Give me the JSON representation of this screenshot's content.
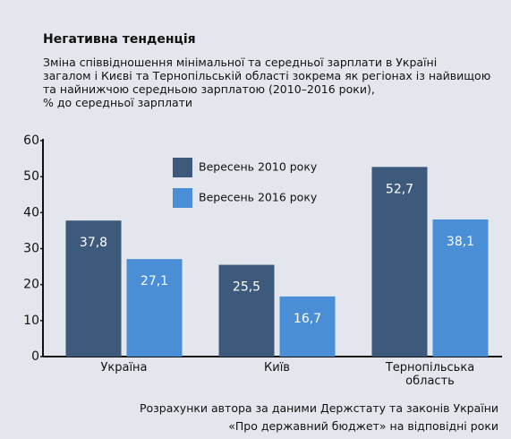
{
  "chart_data": {
    "type": "bar",
    "title": "Негативна тенденція",
    "subtitle": [
      "Зміна співвідношення мінімальної та середньої зарплати в Україні",
      "загалом і Києві та Тернопільській області зокрема як регіонах із найвищою",
      "та найнижчою середньою зарплатою (2010–2016 роки),",
      "% до середньої зарплати"
    ],
    "categories": [
      "Україна",
      "Київ",
      "Тернопільська область"
    ],
    "series": [
      {
        "name": "Вересень 2010 року",
        "color": "#3d5a7c",
        "values": [
          37.8,
          25.5,
          52.7
        ],
        "value_labels": [
          "37,8",
          "25,5",
          "52,7"
        ]
      },
      {
        "name": "Вересень 2016 року",
        "color": "#4a8fd5",
        "values": [
          27.1,
          16.7,
          38.1
        ],
        "value_labels": [
          "27,1",
          "16,7",
          "38,1"
        ]
      }
    ],
    "ylim": [
      0,
      60
    ],
    "yticks": [
      0,
      10,
      20,
      30,
      40,
      50,
      60
    ],
    "source": [
      "Розрахунки автора за даними Держстату та законів України",
      "«Про державний бюджет» на відповідні роки"
    ]
  }
}
